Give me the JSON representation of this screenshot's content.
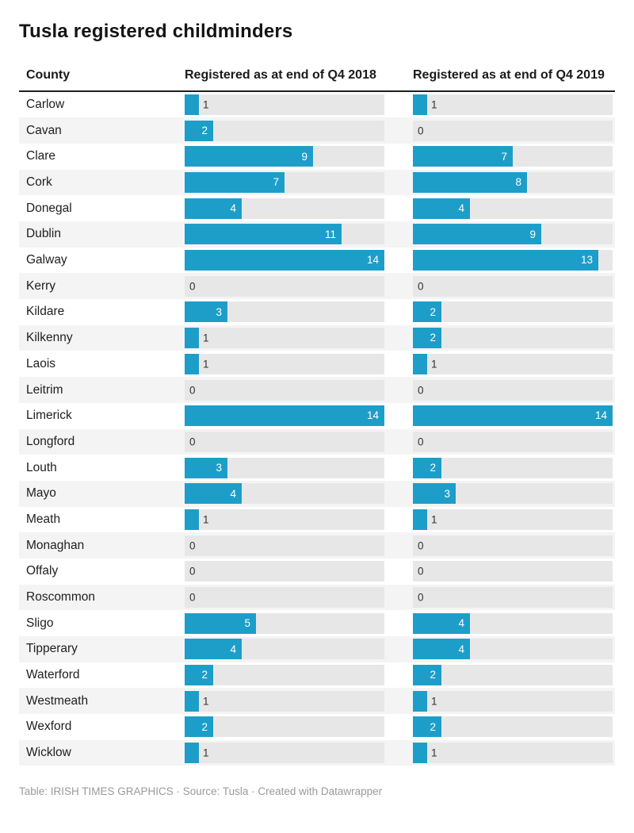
{
  "title": "Tusla registered childminders",
  "columns": {
    "county": "County",
    "y2018": "Registered as at end of Q4 2018",
    "y2019": "Registered as at end of Q4 2019"
  },
  "footer": "Table: IRISH TIMES GRAPHICS · Source: Tusla · Created with Datawrapper",
  "colors": {
    "bar": "#1d9ec9",
    "track": "#e7e7e7",
    "row_alt": "#f4f4f4",
    "value_inside": "#ffffff",
    "value_outside": "#333333"
  },
  "chart_data": {
    "type": "bar",
    "title": "Tusla registered childminders",
    "xlabel": "",
    "ylabel": "",
    "xlim": [
      0,
      14
    ],
    "grid": false,
    "legend_position": "column-headers",
    "categories": [
      "Carlow",
      "Cavan",
      "Clare",
      "Cork",
      "Donegal",
      "Dublin",
      "Galway",
      "Kerry",
      "Kildare",
      "Kilkenny",
      "Laois",
      "Leitrim",
      "Limerick",
      "Longford",
      "Louth",
      "Mayo",
      "Meath",
      "Monaghan",
      "Offaly",
      "Roscommon",
      "Sligo",
      "Tipperary",
      "Waterford",
      "Westmeath",
      "Wexford",
      "Wicklow"
    ],
    "series": [
      {
        "name": "Registered as at end of Q4 2018",
        "values": [
          1,
          2,
          9,
          7,
          4,
          11,
          14,
          0,
          3,
          1,
          1,
          0,
          14,
          0,
          3,
          4,
          1,
          0,
          0,
          0,
          5,
          4,
          2,
          1,
          2,
          1
        ]
      },
      {
        "name": "Registered as at end of Q4 2019",
        "values": [
          1,
          0,
          7,
          8,
          4,
          9,
          13,
          0,
          2,
          2,
          1,
          0,
          14,
          0,
          2,
          3,
          1,
          0,
          0,
          0,
          4,
          4,
          2,
          1,
          2,
          1
        ]
      }
    ]
  }
}
